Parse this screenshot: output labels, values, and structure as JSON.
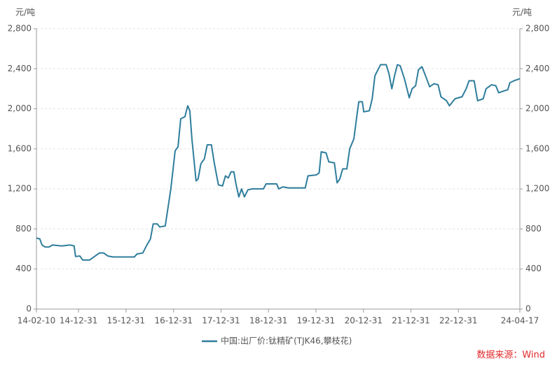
{
  "chart_data": {
    "type": "line",
    "y_label": "元/吨",
    "y2_label": "元/吨",
    "source": "数据来源：Wind",
    "grid": true,
    "legend": "bottom",
    "xlim": [
      "2014-02-10",
      "2024-04-17"
    ],
    "xticks": [
      {
        "value": "2014-02-10",
        "label": "14-02-10"
      },
      {
        "value": "2014-12-31",
        "label": "14-12-31"
      },
      {
        "value": "2015-12-31",
        "label": "15-12-31"
      },
      {
        "value": "2016-12-31",
        "label": "16-12-31"
      },
      {
        "value": "2017-12-31",
        "label": "17-12-31"
      },
      {
        "value": "2018-12-31",
        "label": "18-12-31"
      },
      {
        "value": "2019-12-31",
        "label": "19-12-31"
      },
      {
        "value": "2020-12-31",
        "label": "20-12-31"
      },
      {
        "value": "2021-12-31",
        "label": "21-12-31"
      },
      {
        "value": "2022-12-31",
        "label": "22-12-31"
      },
      {
        "value": "2024-04-17",
        "label": "24-04-17"
      }
    ],
    "ylim": [
      0,
      2800
    ],
    "yticks": [
      0,
      400,
      800,
      {
        "value": 1200,
        "label": "1,200"
      },
      {
        "value": 1600,
        "label": "1,600"
      },
      {
        "value": 2000,
        "label": "2,000"
      },
      {
        "value": 2400,
        "label": "2,400"
      },
      {
        "value": 2800,
        "label": "2,800"
      }
    ],
    "y2lim": [
      0,
      2800
    ],
    "y2ticks": [
      0,
      400,
      800,
      {
        "value": 1200,
        "label": "1,200"
      },
      {
        "value": 1600,
        "label": "1,600"
      },
      {
        "value": 2000,
        "label": "2,000"
      },
      {
        "value": 2400,
        "label": "2,400"
      },
      {
        "value": 2800,
        "label": "2,800"
      }
    ],
    "x": [
      "2014-02-10",
      "2014-03-08",
      "2014-03-25",
      "2014-04-17",
      "2014-05-18",
      "2014-06-14",
      "2014-08-23",
      "2014-10-26",
      "2014-11-27",
      "2014-12-08",
      "2015-01-10",
      "2015-02-01",
      "2015-03-26",
      "2015-06-10",
      "2015-07-12",
      "2015-08-13",
      "2015-09-24",
      "2016-03-04",
      "2016-03-25",
      "2016-05-08",
      "2016-06-09",
      "2016-07-06",
      "2016-07-27",
      "2016-08-28",
      "2016-09-15",
      "2016-10-28",
      "2016-12-10",
      "2017-01-12",
      "2017-02-03",
      "2017-02-24",
      "2017-03-28",
      "2017-04-19",
      "2017-05-05",
      "2017-05-21",
      "2017-06-22",
      "2017-07-08",
      "2017-07-29",
      "2017-08-25",
      "2017-09-16",
      "2017-10-18",
      "2017-11-09",
      "2017-12-11",
      "2018-01-12",
      "2018-02-03",
      "2018-02-25",
      "2018-03-18",
      "2018-04-09",
      "2018-04-25",
      "2018-05-17",
      "2018-06-07",
      "2018-06-29",
      "2018-07-26",
      "2018-08-27",
      "2018-11-22",
      "2018-12-13",
      "2019-03-04",
      "2019-03-20",
      "2019-04-21",
      "2019-06-03",
      "2019-10-10",
      "2019-10-31",
      "2020-01-04",
      "2020-01-25",
      "2020-02-10",
      "2020-03-18",
      "2020-04-08",
      "2020-05-21",
      "2020-06-11",
      "2020-07-02",
      "2020-07-24",
      "2020-08-25",
      "2020-09-16",
      "2020-10-18",
      "2020-11-09",
      "2020-11-25",
      "2020-12-22",
      "2021-01-02",
      "2021-02-14",
      "2021-03-08",
      "2021-03-29",
      "2021-05-11",
      "2021-06-24",
      "2021-07-15",
      "2021-08-06",
      "2021-08-27",
      "2021-09-18",
      "2021-10-09",
      "2021-11-11",
      "2021-12-18",
      "2022-01-09",
      "2022-02-05",
      "2022-02-27",
      "2022-03-26",
      "2022-04-22",
      "2022-05-24",
      "2022-06-26",
      "2022-07-28",
      "2022-08-19",
      "2022-10-01",
      "2022-10-23",
      "2022-12-05",
      "2023-01-28",
      "2023-03-01",
      "2023-03-23",
      "2023-05-01",
      "2023-05-28",
      "2023-07-10",
      "2023-08-01",
      "2023-09-13",
      "2023-10-15",
      "2023-11-06",
      "2023-12-19",
      "2024-01-15",
      "2024-01-31",
      "2024-03-03",
      "2024-04-17"
    ],
    "series": [
      {
        "name": "中国:出厂价:钛精矿(TJK46,攀枝花)",
        "color": "#2e7d9c",
        "values": [
          710,
          700,
          640,
          620,
          620,
          640,
          630,
          640,
          630,
          525,
          530,
          490,
          490,
          560,
          560,
          530,
          520,
          520,
          550,
          560,
          640,
          700,
          850,
          850,
          820,
          830,
          1200,
          1580,
          1620,
          1900,
          1920,
          2030,
          1980,
          1700,
          1280,
          1300,
          1450,
          1500,
          1640,
          1640,
          1460,
          1240,
          1230,
          1330,
          1310,
          1370,
          1370,
          1250,
          1120,
          1200,
          1120,
          1190,
          1200,
          1200,
          1250,
          1250,
          1200,
          1220,
          1210,
          1210,
          1330,
          1340,
          1360,
          1570,
          1560,
          1470,
          1460,
          1260,
          1300,
          1400,
          1400,
          1600,
          1700,
          1920,
          2070,
          2070,
          1970,
          1980,
          2100,
          2330,
          2440,
          2440,
          2350,
          2200,
          2330,
          2440,
          2430,
          2300,
          2110,
          2200,
          2230,
          2390,
          2420,
          2330,
          2220,
          2250,
          2240,
          2120,
          2080,
          2030,
          2100,
          2120,
          2200,
          2280,
          2280,
          2080,
          2100,
          2200,
          2240,
          2230,
          2160,
          2180,
          2190,
          2260,
          2280,
          2300
        ]
      }
    ]
  }
}
